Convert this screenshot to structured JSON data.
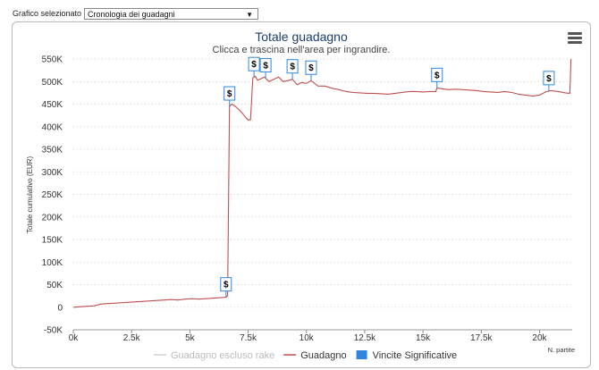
{
  "selector": {
    "label": "Grafico selezionato",
    "value": "Cronologia dei guadagni"
  },
  "colors": {
    "profit_line": "#c0504d",
    "no_rake_line": "#d0d0d0",
    "significant_flag": "#2e86de",
    "grid": "#cccccc",
    "title": "#333333"
  },
  "chart_data": {
    "type": "line",
    "title": "Totale guadagno",
    "subtitle": "Clicca e trascina nell'area per ingrandire.",
    "ylabel": "Totale cumulativo (EUR)",
    "xlabel": "N. partite",
    "xlim": [
      0,
      21400
    ],
    "ylim": [
      -50000,
      550000
    ],
    "x_ticks": [
      0,
      2500,
      5000,
      7500,
      10000,
      12500,
      15000,
      17500,
      20000
    ],
    "x_tick_labels": [
      "0k",
      "2.5k",
      "5k",
      "7.5k",
      "10k",
      "12.5k",
      "15k",
      "17.5k",
      "20k"
    ],
    "y_ticks": [
      -50000,
      0,
      50000,
      100000,
      150000,
      200000,
      250000,
      300000,
      350000,
      400000,
      450000,
      500000,
      550000
    ],
    "y_tick_labels": [
      "-50K",
      "0",
      "50K",
      "100K",
      "150K",
      "200K",
      "250K",
      "300K",
      "350K",
      "400K",
      "450K",
      "500K",
      "550K"
    ],
    "grid": true,
    "legend_position": "bottom",
    "legend": [
      {
        "name": "Guadagno escluso rake",
        "kind": "line",
        "color": "#d0d0d0"
      },
      {
        "name": "Guadagno",
        "kind": "line",
        "color": "#c0504d"
      },
      {
        "name": "Vincite Significative",
        "kind": "box",
        "color": "#2e86de"
      }
    ],
    "series": [
      {
        "name": "Guadagno",
        "x": [
          0,
          300,
          600,
          900,
          1200,
          1500,
          1800,
          2100,
          2400,
          2700,
          3000,
          3300,
          3600,
          3900,
          4200,
          4500,
          4800,
          5100,
          5400,
          5700,
          6000,
          6300,
          6550,
          6620,
          6700,
          6800,
          6950,
          7100,
          7250,
          7400,
          7500,
          7600,
          7700,
          7800,
          7900,
          8000,
          8200,
          8400,
          8600,
          8800,
          9000,
          9200,
          9400,
          9600,
          9800,
          10000,
          10200,
          10500,
          10800,
          11100,
          11400,
          11700,
          12000,
          12300,
          12600,
          12900,
          13200,
          13500,
          13800,
          14100,
          14400,
          14700,
          15000,
          15300,
          15550,
          15600,
          15800,
          16100,
          16400,
          16700,
          17000,
          17300,
          17600,
          17900,
          18200,
          18500,
          18800,
          19100,
          19400,
          19700,
          20000,
          20300,
          20500,
          20800,
          21100,
          21300,
          21350
        ],
        "y": [
          0,
          1000,
          2000,
          3000,
          7000,
          8000,
          9000,
          10000,
          11000,
          12000,
          13000,
          14000,
          15000,
          16000,
          17000,
          16000,
          18000,
          19000,
          18000,
          19000,
          20000,
          21000,
          22000,
          25000,
          445000,
          450000,
          445000,
          438000,
          430000,
          420000,
          415000,
          415000,
          508000,
          512000,
          503000,
          505000,
          510000,
          500000,
          505000,
          510000,
          500000,
          502000,
          505000,
          493000,
          498000,
          496000,
          502000,
          490000,
          490000,
          485000,
          482000,
          478000,
          476000,
          475000,
          474000,
          474000,
          473000,
          472000,
          474000,
          476000,
          478000,
          478000,
          477000,
          478000,
          478000,
          486000,
          484000,
          482000,
          483000,
          482000,
          481000,
          480000,
          478000,
          477000,
          476000,
          478000,
          476000,
          472000,
          470000,
          468000,
          470000,
          478000,
          480000,
          478000,
          475000,
          474000,
          550000
        ]
      }
    ],
    "significant_wins_x": [
      6550,
      6700,
      7750,
      8250,
      9400,
      10200,
      15600,
      20400
    ]
  }
}
